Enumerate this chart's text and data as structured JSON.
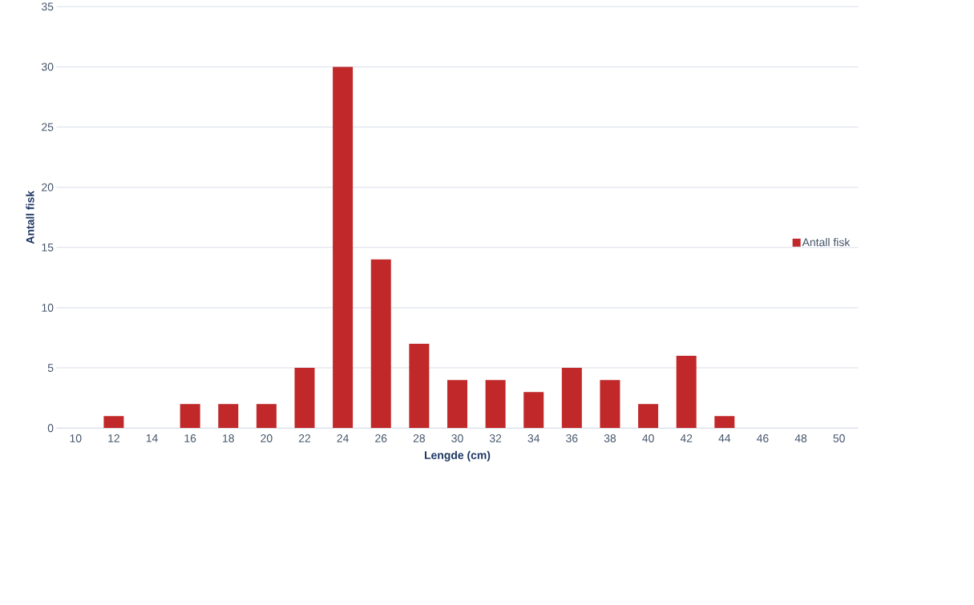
{
  "chart_data": {
    "type": "bar",
    "xlabel": "Lengde (cm)",
    "ylabel": "Antall fisk",
    "categories": [
      "10",
      "12",
      "14",
      "16",
      "18",
      "20",
      "22",
      "24",
      "26",
      "28",
      "30",
      "32",
      "34",
      "36",
      "38",
      "40",
      "42",
      "44",
      "46",
      "48",
      "50"
    ],
    "series": [
      {
        "name": "Antall fisk",
        "color": "#c0282a",
        "values": [
          0,
          1,
          0,
          2,
          2,
          2,
          5,
          30,
          14,
          7,
          4,
          4,
          3,
          5,
          4,
          2,
          6,
          1,
          0,
          0,
          0
        ]
      }
    ],
    "ylim": [
      0,
      35
    ],
    "yticks": [
      0,
      5,
      10,
      15,
      20,
      25,
      30,
      35
    ],
    "grid": "y",
    "legend": "right"
  }
}
